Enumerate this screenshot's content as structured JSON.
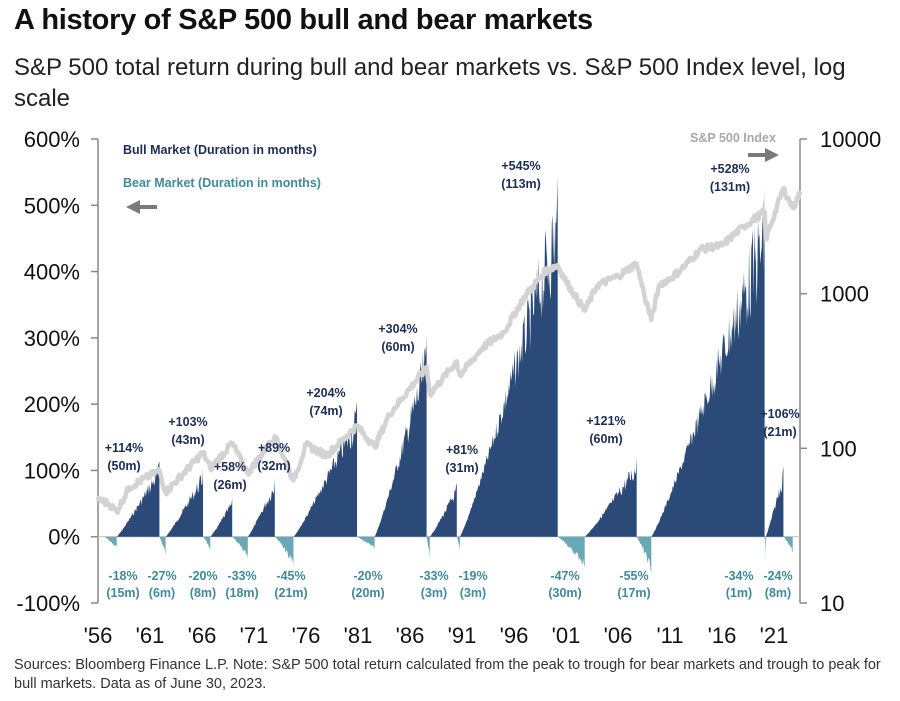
{
  "header": {
    "title": "A history of S&P 500 bull and bear markets",
    "subtitle": "S&P 500 total return during bull and bear markets vs. S&P 500 Index level, log scale"
  },
  "footer": {
    "source": "Sources: Bloomberg Finance L.P. Note: S&P 500 total return calculated from the peak to trough for bear markets and trough to peak for bull markets. Data as of June 30, 2023."
  },
  "colors": {
    "bull": "#2b4a77",
    "bear": "#6aa8b6",
    "index": "#d3d3d3",
    "axis": "#888888",
    "bull_text": "#1b2e57",
    "bear_text": "#3f8a9c"
  },
  "chart_data": {
    "type": "area",
    "x_range": [
      1956,
      2023.5
    ],
    "x_ticks": [
      {
        "year": 1956,
        "label": "'56"
      },
      {
        "year": 1961,
        "label": "'61"
      },
      {
        "year": 1966,
        "label": "'66"
      },
      {
        "year": 1971,
        "label": "'71"
      },
      {
        "year": 1976,
        "label": "'76"
      },
      {
        "year": 1981,
        "label": "'81"
      },
      {
        "year": 1986,
        "label": "'86"
      },
      {
        "year": 1991,
        "label": "'91"
      },
      {
        "year": 1996,
        "label": "'96"
      },
      {
        "year": 2001,
        "label": "'01"
      },
      {
        "year": 2006,
        "label": "'06"
      },
      {
        "year": 2011,
        "label": "'11"
      },
      {
        "year": 2016,
        "label": "'16"
      },
      {
        "year": 2021,
        "label": "'21"
      }
    ],
    "y_left": {
      "range": [
        -100,
        600
      ],
      "ticks": [
        -100,
        0,
        100,
        200,
        300,
        400,
        500,
        600
      ],
      "tick_labels": [
        "-100%",
        "0%",
        "100%",
        "200%",
        "300%",
        "400%",
        "500%",
        "600%"
      ]
    },
    "y_right": {
      "scale": "log",
      "range": [
        10,
        10000
      ],
      "ticks": [
        10,
        100,
        1000,
        10000
      ],
      "tick_labels": [
        "10",
        "100",
        "1000",
        "10000"
      ]
    },
    "legend": {
      "bull": "Bull Market (Duration in months)",
      "bear": "Bear Market (Duration in months)",
      "index": "S&P 500 Index"
    },
    "bull_markets": [
      {
        "start": 1957.8,
        "end": 1961.9,
        "peak": 114,
        "label": "+114%",
        "duration": "(50m)"
      },
      {
        "start": 1962.5,
        "end": 1966.1,
        "peak": 103,
        "label": "+103%",
        "duration": "(43m)"
      },
      {
        "start": 1966.8,
        "end": 1968.9,
        "peak": 58,
        "label": "+58%",
        "duration": "(26m)"
      },
      {
        "start": 1970.4,
        "end": 1973.0,
        "peak": 89,
        "label": "+89%",
        "duration": "(32m)"
      },
      {
        "start": 1974.8,
        "end": 1980.9,
        "peak": 204,
        "label": "+204%",
        "duration": "(74m)"
      },
      {
        "start": 1982.6,
        "end": 1987.6,
        "peak": 304,
        "label": "+304%",
        "duration": "(60m)"
      },
      {
        "start": 1987.9,
        "end": 1990.5,
        "peak": 81,
        "label": "+81%",
        "duration": "(31m)"
      },
      {
        "start": 1990.8,
        "end": 2000.2,
        "peak": 545,
        "label": "+545%",
        "duration": "(113m)"
      },
      {
        "start": 2002.8,
        "end": 2007.8,
        "peak": 121,
        "label": "+121%",
        "duration": "(60m)"
      },
      {
        "start": 2009.2,
        "end": 2020.1,
        "peak": 528,
        "label": "+528%",
        "duration": "(131m)"
      },
      {
        "start": 2020.2,
        "end": 2021.9,
        "peak": 106,
        "label": "+106%",
        "duration": "(21m)"
      }
    ],
    "bear_markets": [
      {
        "start": 1956.6,
        "end": 1957.8,
        "trough": -18,
        "label": "-18%",
        "duration": "(15m)"
      },
      {
        "start": 1961.9,
        "end": 1962.5,
        "trough": -27,
        "label": "-27%",
        "duration": "(6m)"
      },
      {
        "start": 1966.1,
        "end": 1966.8,
        "trough": -20,
        "label": "-20%",
        "duration": "(8m)"
      },
      {
        "start": 1968.9,
        "end": 1970.4,
        "trough": -33,
        "label": "-33%",
        "duration": "(18m)"
      },
      {
        "start": 1973.0,
        "end": 1974.8,
        "trough": -45,
        "label": "-45%",
        "duration": "(21m)"
      },
      {
        "start": 1980.9,
        "end": 1982.6,
        "trough": -20,
        "label": "-20%",
        "duration": "(20m)"
      },
      {
        "start": 1987.6,
        "end": 1987.9,
        "trough": -33,
        "label": "-33%",
        "duration": "(3m)"
      },
      {
        "start": 1990.5,
        "end": 1990.8,
        "trough": -19,
        "label": "-19%",
        "duration": "(3m)"
      },
      {
        "start": 2000.2,
        "end": 2002.8,
        "trough": -47,
        "label": "-47%",
        "duration": "(30m)"
      },
      {
        "start": 2007.8,
        "end": 2009.2,
        "trough": -55,
        "label": "-55%",
        "duration": "(17m)"
      },
      {
        "start": 2020.1,
        "end": 2020.2,
        "trough": -34,
        "label": "-34%",
        "duration": "(1m)"
      },
      {
        "start": 2021.9,
        "end": 2022.8,
        "trough": -24,
        "label": "-24%",
        "duration": "(8m)"
      }
    ],
    "index_series": {
      "name": "S&P 500 Index",
      "x": [
        1956,
        1957,
        1957.8,
        1959,
        1961.9,
        1962.5,
        1966.1,
        1966.8,
        1968.9,
        1970.4,
        1973.0,
        1974.8,
        1976,
        1978,
        1980.9,
        1982.6,
        1984,
        1987.6,
        1987.9,
        1990.5,
        1990.8,
        1993,
        1995,
        1997,
        1999,
        2000.2,
        2001,
        2002.8,
        2004,
        2006,
        2007.8,
        2008.5,
        2009.2,
        2010,
        2011,
        2012,
        2014,
        2016,
        2018,
        2020.1,
        2020.2,
        2021.9,
        2022.8,
        2023.5
      ],
      "y": [
        47,
        44,
        39,
        56,
        72,
        52,
        94,
        74,
        108,
        69,
        120,
        62,
        105,
        90,
        140,
        102,
        165,
        335,
        224,
        365,
        296,
        450,
        560,
        950,
        1400,
        1530,
        1200,
        777,
        1130,
        1300,
        1565,
        1000,
        677,
        1150,
        1250,
        1420,
        1950,
        2050,
        2700,
        3390,
        2240,
        4790,
        3580,
        4450
      ]
    }
  }
}
